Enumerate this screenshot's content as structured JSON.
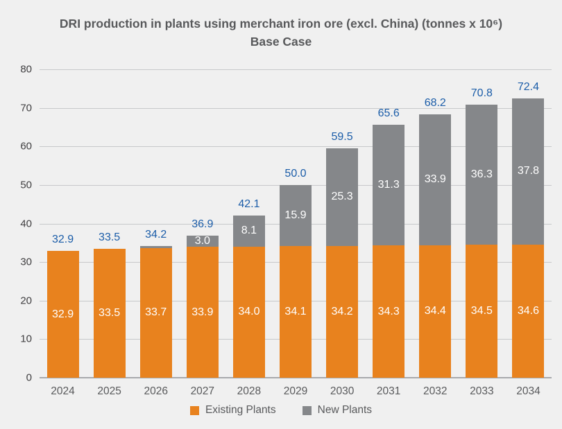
{
  "page": {
    "background": "#F0F0F0"
  },
  "title": {
    "line1": "DRI production in plants using merchant iron ore (excl. China) (tonnes x 10⁶)",
    "line2": "Base Case"
  },
  "chart_data": {
    "type": "bar",
    "stacked": true,
    "title": "DRI production in plants using merchant iron ore (excl. China) (tonnes x 10⁶)",
    "subtitle": "Base Case",
    "categories": [
      "2024",
      "2025",
      "2026",
      "2027",
      "2028",
      "2029",
      "2030",
      "2031",
      "2032",
      "2033",
      "2034"
    ],
    "series": [
      {
        "name": "Existing Plants",
        "color": "#E8821E",
        "values": [
          32.9,
          33.5,
          33.7,
          33.9,
          34.0,
          34.1,
          34.2,
          34.3,
          34.4,
          34.5,
          34.6
        ],
        "labels": [
          "32.9",
          "33.5",
          "33.7",
          "33.9",
          "34.0",
          "34.1",
          "34.2",
          "34.3",
          "34.4",
          "34.5",
          "34.6"
        ]
      },
      {
        "name": "New Plants",
        "color": "#85878A",
        "values": [
          0,
          0,
          0.5,
          3.0,
          8.1,
          15.9,
          25.3,
          31.3,
          33.9,
          36.3,
          37.8
        ],
        "labels": [
          null,
          null,
          null,
          "3.0",
          "8.1",
          "15.9",
          "25.3",
          "31.3",
          "33.9",
          "36.3",
          "37.8"
        ]
      }
    ],
    "totals": [
      "32.9",
      "33.5",
      "34.2",
      "36.9",
      "42.1",
      "50.0",
      "59.5",
      "65.6",
      "68.2",
      "70.8",
      "72.4"
    ],
    "xlabel": "",
    "ylabel": "",
    "ylim": [
      0,
      80
    ],
    "yticks": [
      0,
      10,
      20,
      30,
      40,
      50,
      60,
      70,
      80
    ],
    "grid": true,
    "legend_position": "bottom",
    "colors": {
      "total_label": "#1A5CA8",
      "segment_label": "#FFFFFF",
      "gridline": "#C7C8CA",
      "axis_line": "#A7A9AC",
      "tick_text": "#414042"
    }
  },
  "legend": {
    "items": [
      {
        "label": "Existing Plants",
        "color": "#E8821E"
      },
      {
        "label": "New Plants",
        "color": "#85878A"
      }
    ]
  }
}
